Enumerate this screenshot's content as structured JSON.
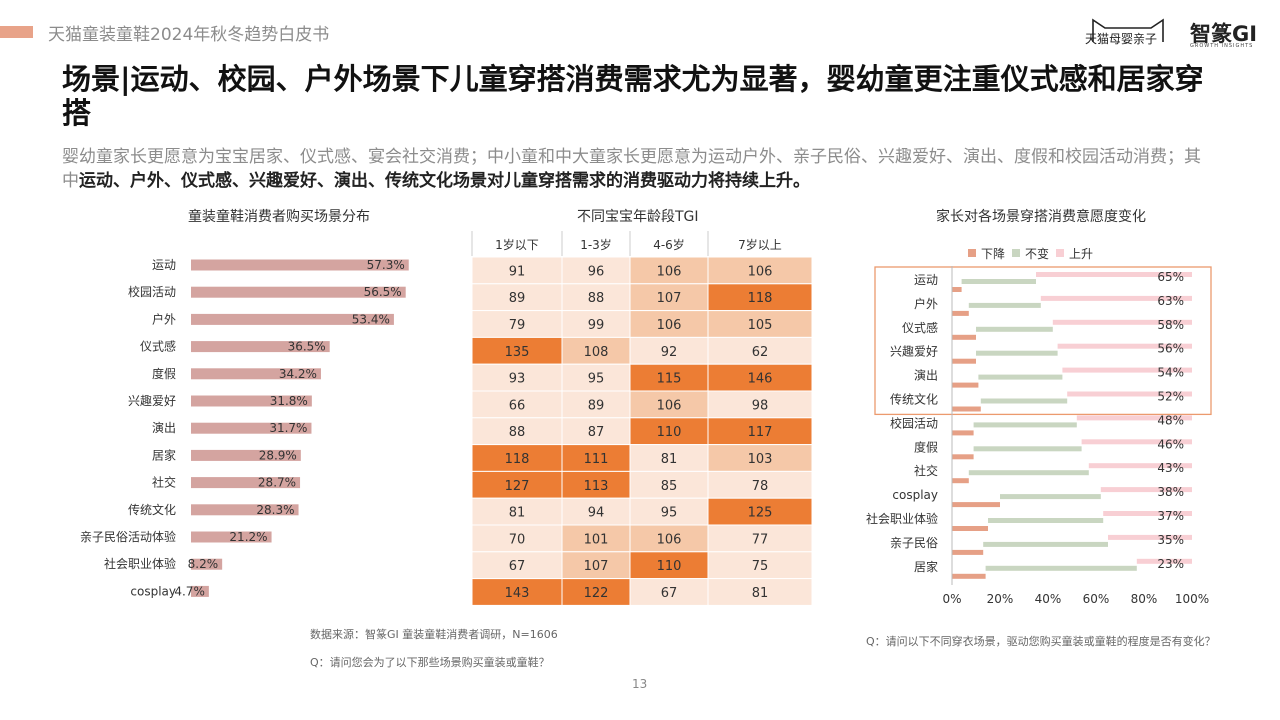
{
  "header": {
    "doc_title": "天猫童装童鞋2024年秋冬趋势白皮书",
    "logo_tmall": "天猫母婴亲子",
    "logo_gi": "智篆GI",
    "logo_gi_sub": "GROWTH INSIGHTS"
  },
  "slide": {
    "title": "场景|运动、校园、户外场景下儿童穿搭消费需求尤为显著，婴幼童更注重仪式感和居家穿搭",
    "subtitle_plain": "婴幼童家长更愿意为宝宝居家、仪式感、宴会社交消费；中小童和中大童家长更愿意为运动户外、亲子民俗、兴趣爱好、演出、度假和校园活动消费；其中",
    "subtitle_bold": "运动、户外、仪式感、兴趣爱好、演出、传统文化场景对儿童穿搭需求的消费驱动力将持续上升。",
    "page_number": "13"
  },
  "notes": {
    "source": "数据来源：智篆GI 童装童鞋消费者调研，N=1606",
    "q_left": "Q：请问您会为了以下那些场景购买童装或童鞋？",
    "q_right": "Q：请问以下不同穿衣场景，驱动您购买童装或童鞋的程度是否有变化？"
  },
  "chart_data": [
    {
      "type": "bar",
      "title": "童装童鞋消费者购买场景分布",
      "categories": [
        "运动",
        "校园活动",
        "户外",
        "仪式感",
        "度假",
        "兴趣爱好",
        "演出",
        "居家",
        "社交",
        "传统文化",
        "亲子民俗活动体验",
        "社会职业体验",
        "cosplay"
      ],
      "values": [
        57.3,
        56.5,
        53.4,
        36.5,
        34.2,
        31.8,
        31.7,
        28.9,
        28.7,
        28.3,
        21.2,
        8.2,
        4.7
      ],
      "value_suffix": "%",
      "color": "#d4a4a0"
    },
    {
      "type": "heatmap",
      "title": "不同宝宝年龄段TGI",
      "columns": [
        "1岁以下",
        "1-3岁",
        "4-6岁",
        "7岁以上"
      ],
      "rows": [
        "运动",
        "校园活动",
        "户外",
        "仪式感",
        "度假",
        "兴趣爱好",
        "演出",
        "居家",
        "社交",
        "传统文化",
        "亲子民俗活动体验",
        "社会职业体验",
        "cosplay"
      ],
      "values": [
        [
          91,
          96,
          106,
          106
        ],
        [
          89,
          88,
          107,
          118
        ],
        [
          79,
          99,
          106,
          105
        ],
        [
          135,
          108,
          92,
          62
        ],
        [
          93,
          95,
          115,
          146
        ],
        [
          66,
          89,
          106,
          98
        ],
        [
          88,
          87,
          110,
          117
        ],
        [
          118,
          111,
          81,
          103
        ],
        [
          127,
          113,
          85,
          78
        ],
        [
          81,
          94,
          95,
          125
        ],
        [
          70,
          101,
          106,
          77
        ],
        [
          67,
          107,
          110,
          75
        ],
        [
          143,
          122,
          67,
          81
        ]
      ],
      "colors": {
        "high": "#ec7d34",
        "mid": "#f5c8a8",
        "low": "#fbe6d9"
      }
    },
    {
      "type": "bar",
      "stacked": true,
      "title": "家长对各场景穿搭消费意愿度变化",
      "categories": [
        "运动",
        "户外",
        "仪式感",
        "兴趣爱好",
        "演出",
        "传统文化",
        "校园活动",
        "度假",
        "社交",
        "cosplay",
        "社会职业体验",
        "亲子民俗",
        "居家"
      ],
      "series": [
        {
          "name": "下降",
          "color": "#e6a086",
          "values": [
            4,
            7,
            10,
            10,
            11,
            12,
            9,
            9,
            7,
            20,
            15,
            13,
            14
          ]
        },
        {
          "name": "不变",
          "color": "#c9d6c1",
          "values": [
            31,
            30,
            32,
            34,
            35,
            36,
            43,
            45,
            50,
            42,
            48,
            52,
            63
          ]
        },
        {
          "name": "上升",
          "color": "#f8cfd4",
          "values": [
            65,
            63,
            58,
            56,
            54,
            52,
            48,
            46,
            43,
            38,
            37,
            35,
            23
          ]
        }
      ],
      "labeled_series": "上升",
      "value_suffix": "%",
      "xlim": [
        0,
        100
      ],
      "x_ticks": [
        "0%",
        "20%",
        "40%",
        "60%",
        "80%",
        "100%"
      ],
      "highlight_rows": [
        "运动",
        "户外",
        "仪式感",
        "兴趣爱好",
        "演出",
        "传统文化"
      ],
      "highlight_color": "#ec9a6e",
      "legend_position": "top"
    }
  ]
}
